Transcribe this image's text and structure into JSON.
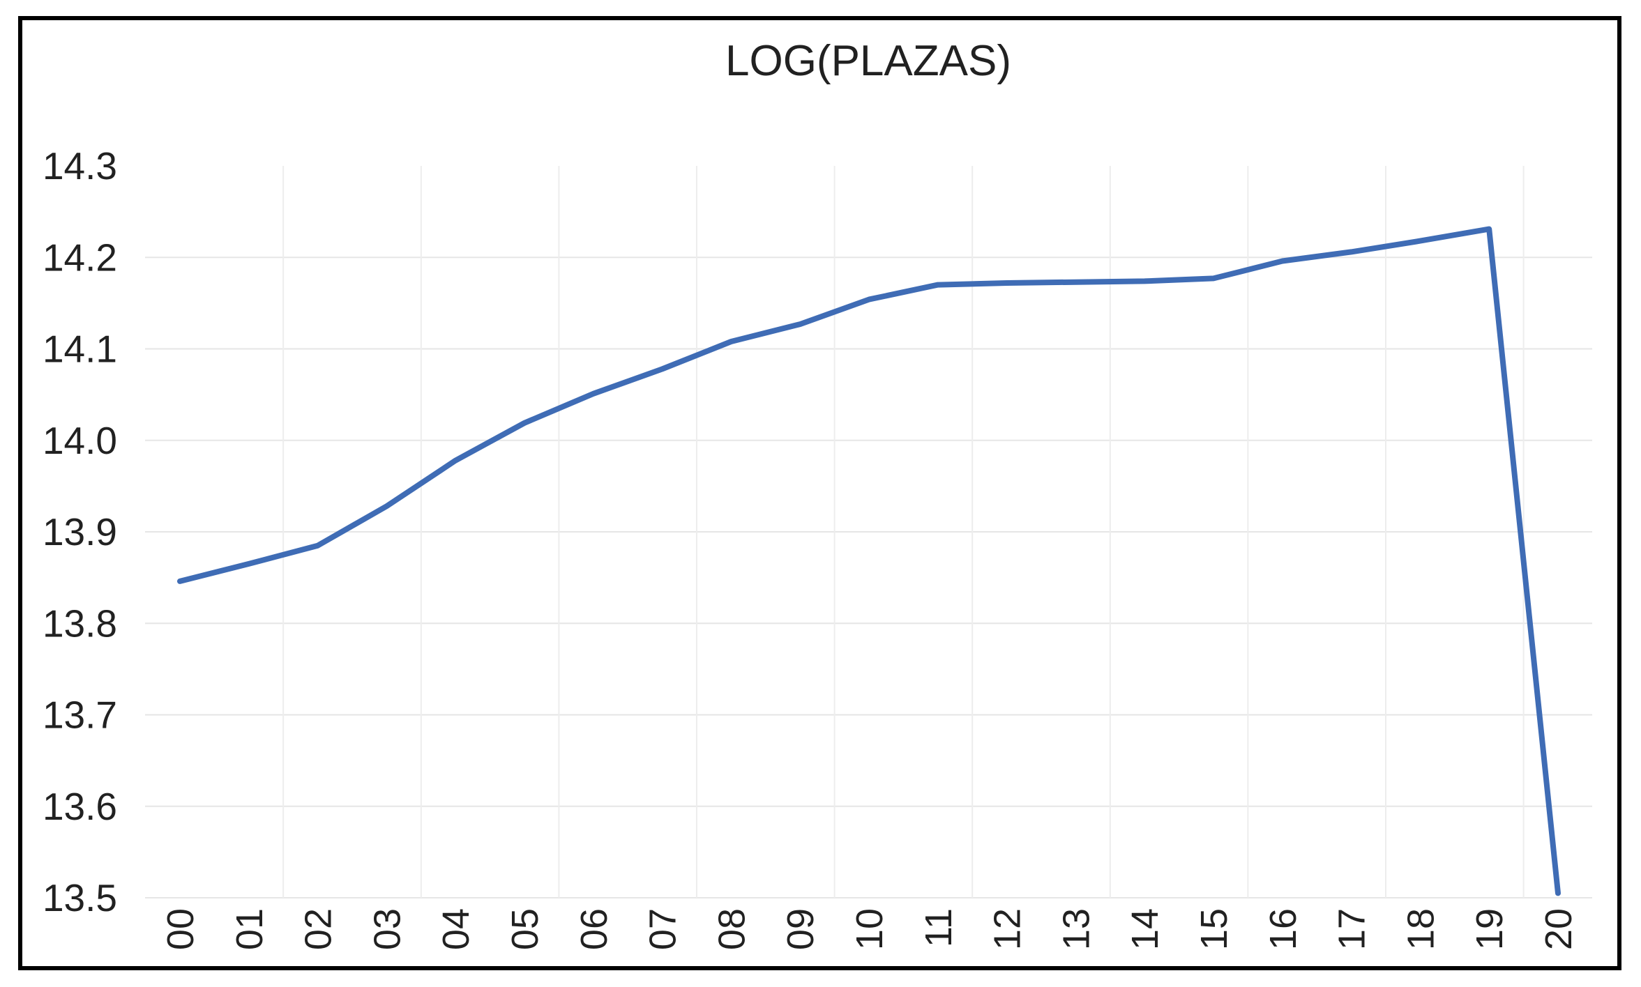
{
  "chart_data": {
    "type": "line",
    "title": "LOG(PLAZAS)",
    "categories": [
      "00",
      "01",
      "02",
      "03",
      "04",
      "05",
      "06",
      "07",
      "08",
      "09",
      "10",
      "11",
      "12",
      "13",
      "14",
      "15",
      "16",
      "17",
      "18",
      "19",
      "20"
    ],
    "series": [
      {
        "name": "LOG(PLAZAS)",
        "values": [
          13.846,
          13.865,
          13.885,
          13.928,
          13.978,
          14.019,
          14.051,
          14.078,
          14.108,
          14.127,
          14.154,
          14.17,
          14.172,
          14.173,
          14.174,
          14.177,
          14.196,
          14.206,
          14.218,
          14.231,
          13.505
        ]
      }
    ],
    "xlabel": "",
    "ylabel": "",
    "ylim": [
      13.5,
      14.3
    ],
    "y_tick_step": 0.1,
    "y_tick_labels": [
      "14.3",
      "14.2",
      "14.1",
      "14.0",
      "13.9",
      "13.8",
      "13.7",
      "13.6",
      "13.5"
    ],
    "x_tick_rotation_degrees": -90,
    "legend": "none",
    "grid": {
      "horizontal_gridlines_at_every_y_tick_except_top": true,
      "vertical_gridlines_between_categories_every": 2,
      "top_gridline_shown": false
    }
  },
  "colors": {
    "line": "#3F6CB5",
    "grid_horizontal": "#E6E6E6",
    "grid_vertical": "#EDEDED",
    "text": "#212121",
    "outer_border": "#000000",
    "background": "#FFFFFF"
  }
}
